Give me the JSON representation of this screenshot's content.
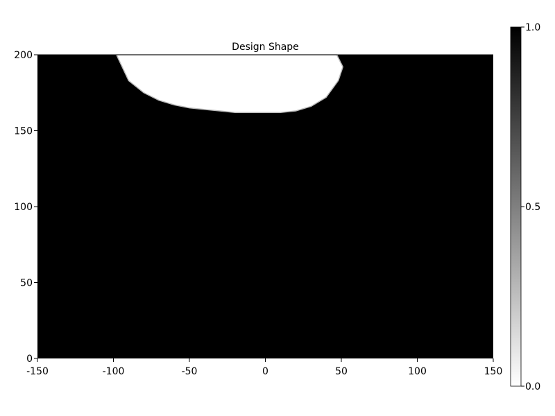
{
  "chart_data": {
    "type": "heatmap",
    "title": "Design Shape",
    "xlabel": "",
    "ylabel": "",
    "xlim": [
      -150,
      150
    ],
    "ylim": [
      0,
      200
    ],
    "x_ticks": [
      -150,
      -100,
      -50,
      0,
      50,
      100,
      150
    ],
    "y_ticks": [
      0,
      50,
      100,
      150,
      200
    ],
    "background_value": 1.0,
    "shape_value": 0.0,
    "shape_boundary": [
      [
        -98,
        200
      ],
      [
        -90,
        183
      ],
      [
        -80,
        175
      ],
      [
        -70,
        170
      ],
      [
        -60,
        167
      ],
      [
        -50,
        165
      ],
      [
        -40,
        164
      ],
      [
        -30,
        163
      ],
      [
        -20,
        162
      ],
      [
        -10,
        162
      ],
      [
        0,
        162
      ],
      [
        10,
        162
      ],
      [
        20,
        163
      ],
      [
        30,
        166
      ],
      [
        40,
        172
      ],
      [
        48,
        183
      ],
      [
        51,
        192
      ],
      [
        47,
        200
      ]
    ],
    "colorbar": {
      "min": 0.0,
      "max": 1.0,
      "ticks": [
        "0.0",
        "0.5",
        "1.0"
      ],
      "min_color": "#ffffff",
      "max_color": "#000000"
    },
    "grid": false
  }
}
